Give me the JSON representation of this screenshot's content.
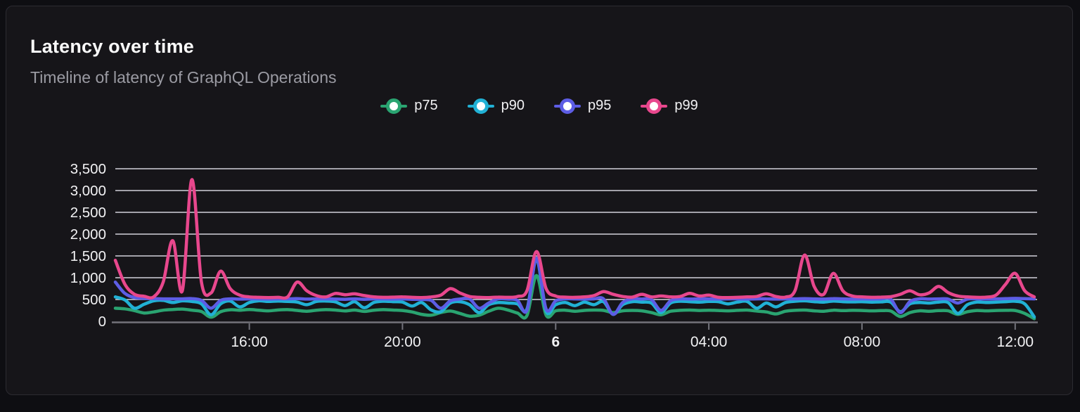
{
  "card": {
    "title": "Latency over time",
    "subtitle": "Timeline of latency of GraphQL Operations"
  },
  "chart_data": {
    "type": "line",
    "title": "Latency over time",
    "subtitle": "Timeline of latency of GraphQL Operations",
    "legend_position": "top-center",
    "grid": true,
    "unit": "ms",
    "x_axis": {
      "start_time": "12:30",
      "end_time": "12:30",
      "span_hours": 24,
      "sample_interval_minutes": 15,
      "ticks": [
        {
          "label": "16:00",
          "hours_from_start": 3.5,
          "bold": false
        },
        {
          "label": "20:00",
          "hours_from_start": 7.5,
          "bold": false
        },
        {
          "label": "6",
          "hours_from_start": 11.5,
          "bold": true
        },
        {
          "label": "04:00",
          "hours_from_start": 15.5,
          "bold": false
        },
        {
          "label": "08:00",
          "hours_from_start": 19.5,
          "bold": false
        },
        {
          "label": "12:00",
          "hours_from_start": 23.5,
          "bold": false
        }
      ]
    },
    "y_axis": {
      "min": 0,
      "max": 3500,
      "step": 500,
      "labels": [
        "0",
        "500",
        "1,000",
        "1,500",
        "2,000",
        "2,500",
        "3,000",
        "3,500"
      ]
    },
    "colors": {
      "grid": "#d2d2da",
      "axis": "#73737b",
      "tick": "#73737b",
      "axis_label": "#f2f2f4",
      "background": "#161519"
    },
    "series": [
      {
        "name": "p75",
        "color": "#2aa471",
        "values": [
          300,
          285,
          245,
          190,
          215,
          255,
          270,
          280,
          255,
          225,
          95,
          220,
          265,
          255,
          270,
          255,
          240,
          260,
          268,
          250,
          230,
          255,
          268,
          258,
          238,
          258,
          228,
          255,
          268,
          258,
          248,
          215,
          160,
          140,
          200,
          235,
          180,
          120,
          140,
          230,
          300,
          260,
          190,
          130,
          1050,
          140,
          240,
          255,
          230,
          250,
          258,
          250,
          200,
          240,
          250,
          240,
          200,
          150,
          230,
          252,
          258,
          248,
          255,
          248,
          240,
          252,
          258,
          235,
          215,
          170,
          230,
          252,
          258,
          240,
          230,
          255,
          245,
          252,
          248,
          240,
          245,
          235,
          110,
          200,
          240,
          230,
          245,
          240,
          160,
          220,
          248,
          240,
          248,
          252,
          248,
          180,
          60
        ]
      },
      {
        "name": "p90",
        "color": "#21b1d5",
        "values": [
          560,
          490,
          300,
          390,
          470,
          480,
          430,
          470,
          455,
          400,
          150,
          400,
          465,
          330,
          430,
          470,
          455,
          465,
          455,
          440,
          380,
          455,
          465,
          445,
          360,
          450,
          310,
          430,
          460,
          450,
          440,
          350,
          430,
          260,
          220,
          420,
          450,
          380,
          200,
          380,
          430,
          420,
          400,
          280,
          1430,
          230,
          380,
          430,
          360,
          440,
          380,
          450,
          160,
          380,
          450,
          440,
          420,
          200,
          420,
          460,
          450,
          440,
          455,
          450,
          400,
          440,
          455,
          300,
          420,
          330,
          430,
          460,
          470,
          450,
          440,
          465,
          450,
          445,
          450,
          440,
          445,
          440,
          220,
          400,
          430,
          420,
          440,
          430,
          180,
          380,
          440,
          430,
          440,
          450,
          460,
          400,
          100
        ]
      },
      {
        "name": "p95",
        "color": "#5d5de5",
        "values": [
          900,
          640,
          545,
          525,
          520,
          515,
          515,
          515,
          520,
          480,
          300,
          480,
          515,
          510,
          515,
          515,
          510,
          515,
          515,
          520,
          510,
          515,
          515,
          510,
          505,
          515,
          505,
          515,
          515,
          510,
          515,
          505,
          500,
          480,
          300,
          470,
          510,
          515,
          300,
          420,
          515,
          510,
          480,
          250,
          1450,
          280,
          470,
          515,
          515,
          510,
          515,
          515,
          160,
          430,
          515,
          510,
          500,
          250,
          470,
          515,
          510,
          515,
          515,
          510,
          515,
          515,
          510,
          515,
          515,
          510,
          515,
          515,
          520,
          515,
          510,
          520,
          515,
          510,
          515,
          510,
          515,
          510,
          200,
          450,
          515,
          510,
          515,
          510,
          420,
          510,
          515,
          510,
          515,
          520,
          525,
          520,
          515
        ]
      },
      {
        "name": "p99",
        "color": "#e8478d",
        "values": [
          1400,
          850,
          620,
          575,
          560,
          900,
          1850,
          700,
          3250,
          900,
          650,
          1150,
          750,
          600,
          560,
          550,
          545,
          550,
          560,
          900,
          700,
          590,
          560,
          640,
          610,
          630,
          590,
          560,
          550,
          555,
          560,
          550,
          545,
          560,
          600,
          750,
          650,
          570,
          550,
          545,
          555,
          550,
          570,
          700,
          1600,
          750,
          580,
          555,
          550,
          560,
          590,
          680,
          620,
          570,
          555,
          620,
          560,
          580,
          560,
          570,
          640,
          580,
          600,
          550,
          545,
          550,
          560,
          570,
          630,
          570,
          555,
          700,
          1520,
          800,
          620,
          1100,
          700,
          580,
          560,
          550,
          555,
          565,
          620,
          700,
          610,
          650,
          800,
          660,
          580,
          560,
          550,
          555,
          600,
          850,
          1100,
          700,
          560
        ]
      }
    ]
  }
}
